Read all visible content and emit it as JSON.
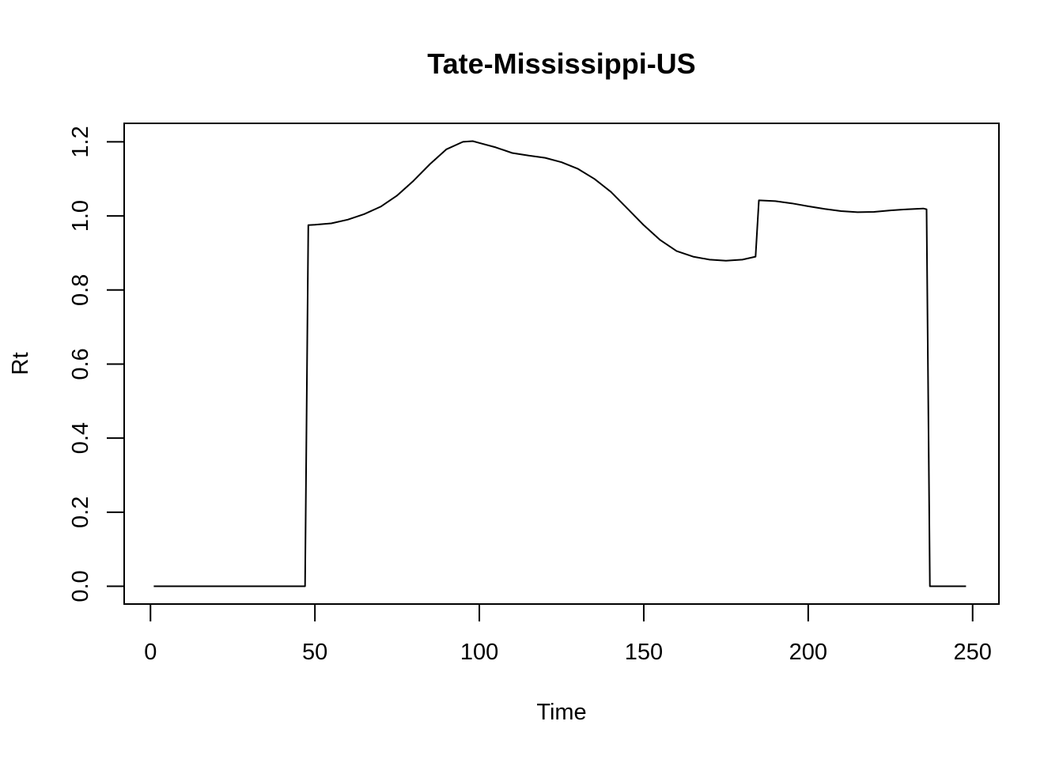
{
  "chart_data": {
    "type": "line",
    "title": "Tate-Mississippi-US",
    "xlabel": "Time",
    "ylabel": "Rt",
    "xlim": [
      -8,
      258
    ],
    "ylim": [
      -0.048,
      1.25
    ],
    "x_ticks": [
      0,
      50,
      100,
      150,
      200,
      250
    ],
    "y_ticks": [
      0.0,
      0.2,
      0.4,
      0.6,
      0.8,
      1.0,
      1.2
    ],
    "x_tick_labels": [
      "0",
      "50",
      "100",
      "150",
      "200",
      "250"
    ],
    "y_tick_labels": [
      "0.0",
      "0.2",
      "0.4",
      "0.6",
      "0.8",
      "1.0",
      "1.2"
    ],
    "grid": false,
    "legend": "none",
    "series": [
      {
        "color": "#000000",
        "x": [
          1,
          10,
          20,
          30,
          40,
          47,
          48,
          50,
          55,
          60,
          65,
          70,
          75,
          80,
          85,
          90,
          95,
          98,
          100,
          105,
          110,
          115,
          120,
          125,
          130,
          135,
          140,
          145,
          150,
          155,
          160,
          165,
          170,
          175,
          180,
          184,
          185,
          190,
          195,
          200,
          205,
          210,
          215,
          220,
          225,
          230,
          235,
          236,
          237,
          240,
          245,
          248
        ],
        "y": [
          0,
          0,
          0,
          0,
          0,
          0,
          0.975,
          0.976,
          0.98,
          0.99,
          1.005,
          1.025,
          1.055,
          1.095,
          1.14,
          1.18,
          1.2,
          1.202,
          1.197,
          1.185,
          1.17,
          1.163,
          1.157,
          1.145,
          1.127,
          1.1,
          1.065,
          1.02,
          0.975,
          0.935,
          0.905,
          0.89,
          0.882,
          0.879,
          0.882,
          0.89,
          1.042,
          1.04,
          1.034,
          1.026,
          1.019,
          1.013,
          1.01,
          1.011,
          1.015,
          1.018,
          1.02,
          1.018,
          0,
          0,
          0,
          0
        ]
      }
    ]
  }
}
